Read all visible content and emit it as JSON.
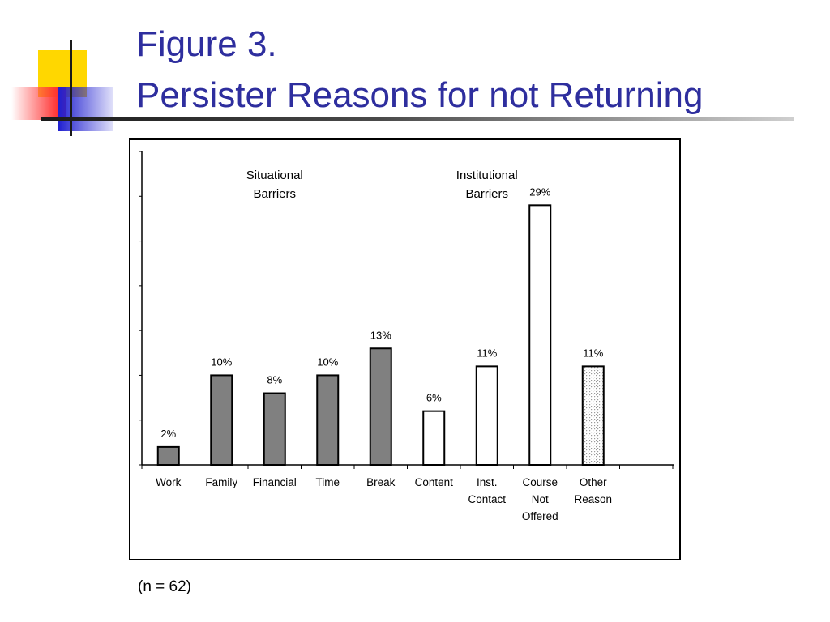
{
  "slide": {
    "title_line1": "Figure 3.",
    "title_line2": "Persister Reasons for not Returning",
    "note": "(n = 62)"
  },
  "colors": {
    "title": "#2e2e9e",
    "situational_bar": "#808080",
    "institutional_bar": "#ffffff",
    "other_bar_pattern": "dotted-light-gray"
  },
  "chart_data": {
    "type": "bar",
    "categories": [
      "Work",
      "Family",
      "Financial",
      "Time",
      "Break",
      "Content",
      "Inst. Contact",
      "Course Not Offered",
      "Other Reason"
    ],
    "category_label_lines": [
      [
        "Work"
      ],
      [
        "Family"
      ],
      [
        "Financial"
      ],
      [
        "Time"
      ],
      [
        "Break"
      ],
      [
        "Content"
      ],
      [
        "Inst.",
        "Contact"
      ],
      [
        "Course",
        "Not",
        "Offered"
      ],
      [
        "Other",
        "Reason"
      ]
    ],
    "values": [
      2,
      10,
      8,
      10,
      13,
      6,
      11,
      29,
      11
    ],
    "value_labels": [
      "2%",
      "10%",
      "8%",
      "10%",
      "13%",
      "6%",
      "11%",
      "29%",
      "11%"
    ],
    "groups": [
      "situational",
      "situational",
      "situational",
      "situational",
      "situational",
      "institutional",
      "institutional",
      "institutional",
      "other"
    ],
    "group_labels": [
      {
        "group": "situational",
        "lines": [
          "Situational",
          "Barriers"
        ]
      },
      {
        "group": "institutional",
        "lines": [
          "Institutional",
          "Barriers"
        ]
      }
    ],
    "ylim": [
      0,
      35
    ],
    "ytick_count": 7,
    "ytick_labels_shown": false,
    "title": "",
    "xlabel": "",
    "ylabel": "",
    "grid": false,
    "legend": "none"
  }
}
